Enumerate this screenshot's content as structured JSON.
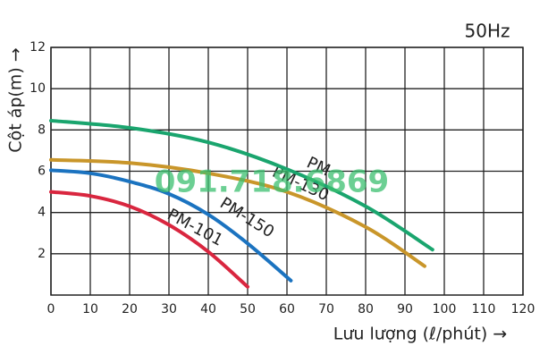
{
  "chart_data": {
    "type": "line",
    "title": "50Hz",
    "x_label": "Lưu lượng (ℓ/phút) →",
    "y_label": "Cột áp(m) →",
    "annotation": "091.718.6869",
    "xlim": [
      0,
      120
    ],
    "xticks": [
      0,
      10,
      20,
      30,
      40,
      50,
      60,
      70,
      80,
      90,
      100,
      110,
      120
    ],
    "ylim": [
      0,
      12
    ],
    "yticks": [
      2,
      4,
      6,
      8,
      10,
      12
    ],
    "grid": true,
    "series": [
      {
        "name": "PM-101",
        "color": "#d9263f",
        "x": [
          0,
          10,
          20,
          30,
          40,
          50
        ],
        "values": [
          5.0,
          4.8,
          4.3,
          3.4,
          2.1,
          0.4
        ]
      },
      {
        "name": "PM-150",
        "color": "#1b73c0",
        "x": [
          0,
          10,
          20,
          30,
          40,
          50,
          61
        ],
        "values": [
          6.05,
          5.9,
          5.5,
          4.9,
          3.9,
          2.5,
          0.7
        ]
      },
      {
        "name": "PM-130",
        "color": "#c9962a",
        "x": [
          0,
          20,
          40,
          60,
          80,
          95
        ],
        "values": [
          6.55,
          6.4,
          5.9,
          5.0,
          3.3,
          1.4
        ]
      },
      {
        "name": "PM",
        "color": "#1aa56e",
        "x": [
          0,
          20,
          40,
          60,
          80,
          97
        ],
        "values": [
          8.45,
          8.1,
          7.4,
          6.1,
          4.3,
          2.2
        ]
      }
    ]
  }
}
